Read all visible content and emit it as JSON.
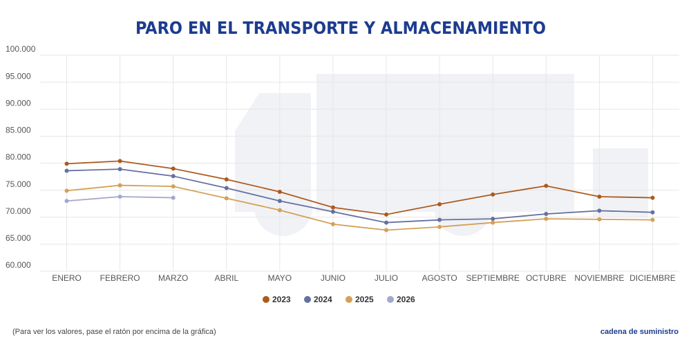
{
  "chart_data": {
    "type": "line",
    "title": "PARO EN EL TRANSPORTE Y ALMACENAMIENTO",
    "categories": [
      "ENERO",
      "FEBRERO",
      "MARZO",
      "ABRIL",
      "MAYO",
      "JUNIO",
      "JULIO",
      "AGOSTO",
      "SEPTIEMBRE",
      "OCTUBRE",
      "NOVIEMBRE",
      "DICIEMBRE"
    ],
    "series": [
      {
        "name": "2023",
        "color": "#ad5a1c",
        "values": [
          79900,
          80400,
          79000,
          77000,
          74700,
          71800,
          70500,
          72400,
          74200,
          75800,
          73800,
          73600
        ]
      },
      {
        "name": "2024",
        "color": "#6470a0",
        "values": [
          78600,
          78900,
          77600,
          75400,
          73000,
          71000,
          69000,
          69500,
          69700,
          70600,
          71200,
          70900
        ]
      },
      {
        "name": "2025",
        "color": "#d4a055",
        "values": [
          74900,
          75900,
          75700,
          73500,
          71300,
          68700,
          67600,
          68200,
          69000,
          69700,
          69600,
          69500
        ]
      },
      {
        "name": "2026",
        "color": "#a3a8cc",
        "values": [
          73000,
          73800,
          73600,
          null,
          null,
          null,
          null,
          null,
          null,
          null,
          null,
          null
        ]
      }
    ],
    "ylim": [
      60000,
      100000
    ],
    "yticks": [
      {
        "value": 60000,
        "label": "60.000"
      },
      {
        "value": 65000,
        "label": "65.000"
      },
      {
        "value": 70000,
        "label": "70.000"
      },
      {
        "value": 75000,
        "label": "75.000"
      },
      {
        "value": 80000,
        "label": "80.000"
      },
      {
        "value": 85000,
        "label": "85.000"
      },
      {
        "value": 90000,
        "label": "90.000"
      },
      {
        "value": 95000,
        "label": "95.000"
      },
      {
        "value": 100000,
        "label": "100.000"
      }
    ],
    "grid": true,
    "legend": "bottom",
    "footnote": "(Para ver los valores, pase el ratón por encima de la gráfica)",
    "brand": "cadena de suministro"
  }
}
